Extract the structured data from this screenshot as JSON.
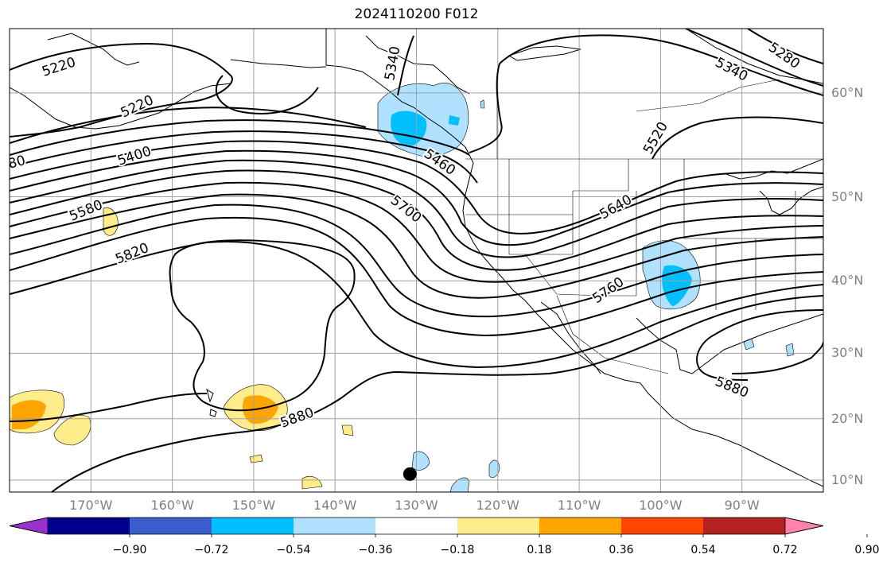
{
  "title": "2024110200 F012",
  "lat_labels": [
    {
      "text": "60°N",
      "lat": 60
    },
    {
      "text": "50°N",
      "lat": 50
    },
    {
      "text": "40°N",
      "lat": 40
    },
    {
      "text": "30°N",
      "lat": 30
    },
    {
      "text": "20°N",
      "lat": 20
    },
    {
      "text": "10°N",
      "lat": 10
    }
  ],
  "lon_labels": [
    {
      "text": "170°W",
      "lon": -170
    },
    {
      "text": "160°W",
      "lon": -160
    },
    {
      "text": "150°W",
      "lon": -150
    },
    {
      "text": "140°W",
      "lon": -140
    },
    {
      "text": "130°W",
      "lon": -130
    },
    {
      "text": "120°W",
      "lon": -120
    },
    {
      "text": "110°W",
      "lon": -110
    },
    {
      "text": "100°W",
      "lon": -100
    },
    {
      "text": "90°W",
      "lon": -90
    }
  ],
  "map_extent": {
    "lon": [
      -180,
      -80
    ],
    "lat": [
      8,
      65
    ]
  },
  "contour_labels": [
    "5220",
    "5220",
    "5340",
    "5340",
    "5280",
    "5400",
    "5460",
    "5520",
    "5580",
    "5640",
    "5700",
    "5760",
    "5820",
    "5880",
    "5880",
    "80"
  ],
  "colorbar": {
    "colors": [
      "#9932cc",
      "#00008b",
      "#3a5fcd",
      "#00bfff",
      "#b0e2ff",
      "#ffffff",
      "#ffec8b",
      "#ffa500",
      "#ff4500",
      "#b22222",
      "#ff82ab"
    ],
    "tick_labels": [
      "−0.90",
      "−0.72",
      "−0.54",
      "−0.36",
      "−0.18",
      "0.18",
      "0.36",
      "0.54",
      "0.72",
      "0.90"
    ]
  },
  "marker": {
    "lon": -130.8,
    "lat": 11.0,
    "color": "#000000"
  }
}
